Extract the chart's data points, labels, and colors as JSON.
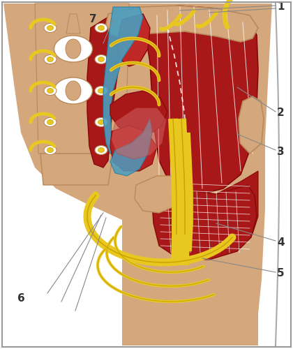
{
  "bg_color": "#ffffff",
  "skin_color": "#D4A87C",
  "skin_dark": "#B8895A",
  "muscle_red": "#A81818",
  "muscle_red_dark": "#880808",
  "muscle_red_light": "#C02828",
  "muscle_red_med": "#B82020",
  "pink_muscle": "#D06060",
  "nerve_yellow": "#E8C820",
  "nerve_gold": "#C8A000",
  "blue_tissue": "#4A9EC0",
  "blue_dark": "#2A7A9A",
  "blue_light": "#6ABEDC",
  "label_color": "#333333",
  "gray_line": "#888888",
  "label_font": 11
}
